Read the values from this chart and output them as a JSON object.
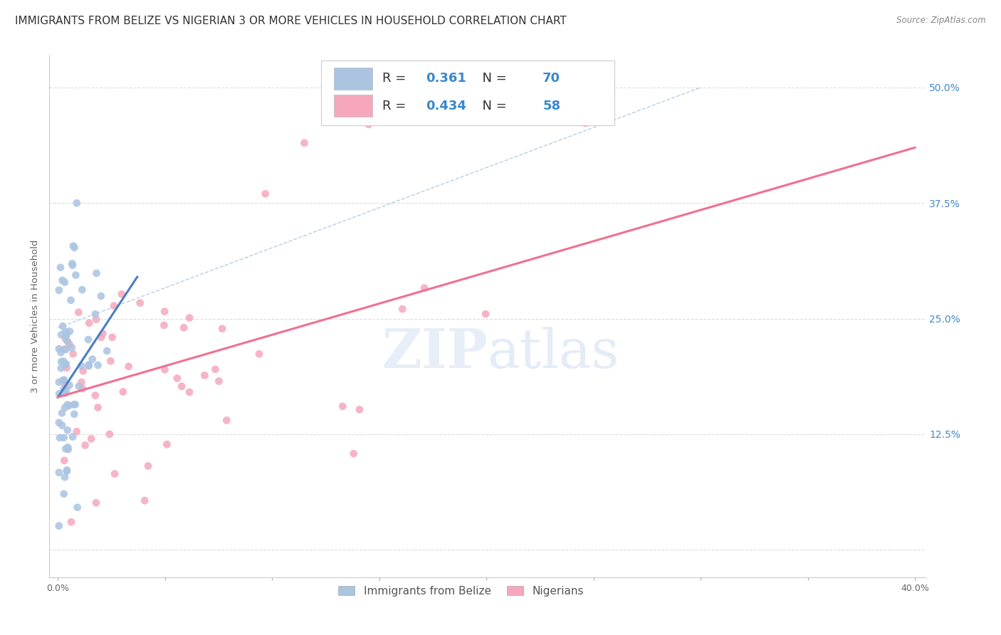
{
  "title": "IMMIGRANTS FROM BELIZE VS NIGERIAN 3 OR MORE VEHICLES IN HOUSEHOLD CORRELATION CHART",
  "source": "Source: ZipAtlas.com",
  "ylabel": "3 or more Vehicles in Household",
  "xlim": [
    -0.004,
    0.405
  ],
  "ylim": [
    -0.03,
    0.535
  ],
  "yticks": [
    0.0,
    0.125,
    0.25,
    0.375,
    0.5
  ],
  "ytick_labels": [
    "",
    "12.5%",
    "25.0%",
    "37.5%",
    "50.0%"
  ],
  "belize_R": 0.361,
  "belize_N": 70,
  "nigerian_R": 0.434,
  "nigerian_N": 58,
  "belize_color": "#aac4e2",
  "nigerian_color": "#f5a8bc",
  "belize_line_color": "#4a7fc1",
  "nigerian_line_color": "#f07090",
  "watermark_zip": "ZIP",
  "watermark_atlas": "atlas",
  "background_color": "#ffffff",
  "grid_color": "#dddddd",
  "title_fontsize": 11,
  "axis_label_fontsize": 9.5,
  "tick_fontsize": 9,
  "legend_fontsize": 13,
  "ref_line_color": "#b0c8e0",
  "nigerian_line_y0": 0.165,
  "nigerian_line_y1": 0.435,
  "nigerian_line_x0": 0.0,
  "nigerian_line_x1": 0.4,
  "belize_line_x0": 0.0,
  "belize_line_x1": 0.037,
  "belize_line_y0": 0.165,
  "belize_line_y1": 0.295
}
